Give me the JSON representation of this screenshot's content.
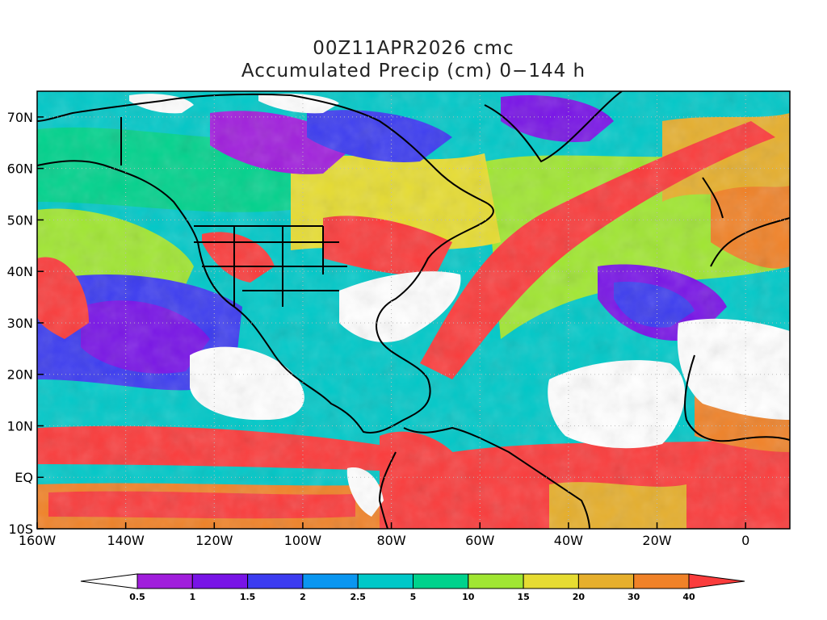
{
  "title": "00Z11APR2026 cmc",
  "subtitle": "Accumulated Precip (cm) 0−144 h",
  "map": {
    "lon_range": [
      -160,
      10
    ],
    "lat_range": [
      -10,
      75
    ],
    "x_ticks": [
      {
        "value": -160,
        "label": "160W"
      },
      {
        "value": -140,
        "label": "140W"
      },
      {
        "value": -120,
        "label": "120W"
      },
      {
        "value": -100,
        "label": "100W"
      },
      {
        "value": -80,
        "label": "80W"
      },
      {
        "value": -60,
        "label": "60W"
      },
      {
        "value": -40,
        "label": "40W"
      },
      {
        "value": -20,
        "label": "20W"
      },
      {
        "value": 0,
        "label": "0"
      }
    ],
    "y_ticks": [
      {
        "value": -10,
        "label": "10S"
      },
      {
        "value": 0,
        "label": "EQ"
      },
      {
        "value": 10,
        "label": "10N"
      },
      {
        "value": 20,
        "label": "20N"
      },
      {
        "value": 30,
        "label": "30N"
      },
      {
        "value": 40,
        "label": "40N"
      },
      {
        "value": 50,
        "label": "50N"
      },
      {
        "value": 60,
        "label": "60N"
      },
      {
        "value": 70,
        "label": "70N"
      }
    ],
    "grid": true
  },
  "colorbar": {
    "labels": [
      "0.5",
      "1",
      "1.5",
      "2",
      "2.5",
      "5",
      "10",
      "15",
      "20",
      "30",
      "40"
    ],
    "colors": [
      "#ffffff",
      "#a01edc",
      "#7814e6",
      "#3c3cf0",
      "#0a96f0",
      "#00c8c8",
      "#00d28c",
      "#a0e632",
      "#e6dc32",
      "#e6af2d",
      "#f08228",
      "#fa3c3c"
    ]
  }
}
